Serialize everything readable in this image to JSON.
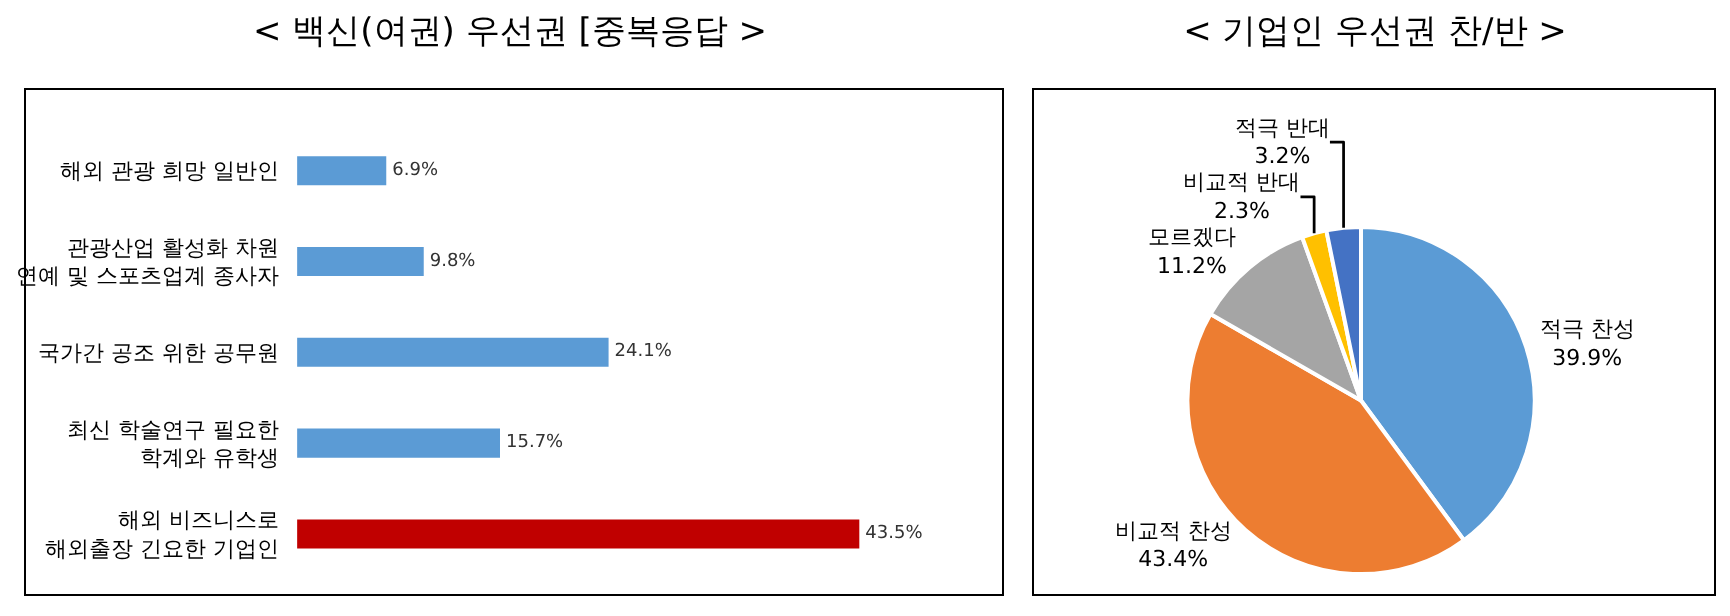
{
  "chart_data": [
    {
      "type": "bar",
      "orientation": "horizontal",
      "title": "< 백신(여권) 우선권 [중복응답 >",
      "categories": [
        "해외 관광 희망 일반인",
        "관광산업 활성화 차원\n연예 및 스포츠업계 종사자",
        "국가간 공조 위한 공무원",
        "최신 학술연구 필요한\n학계와 유학생",
        "해외 비즈니스로\n해외출장 긴요한 기업인"
      ],
      "values": [
        6.9,
        9.8,
        24.1,
        15.7,
        43.5
      ],
      "value_labels": [
        "6.9%",
        "9.8%",
        "24.1%",
        "15.7%",
        "43.5%"
      ],
      "colors": [
        "#5b9bd5",
        "#5b9bd5",
        "#5b9bd5",
        "#5b9bd5",
        "#c00000"
      ]
    },
    {
      "type": "pie",
      "title": "< 기업인 우선권 찬/반 >",
      "categories": [
        "적극 찬성",
        "비교적 찬성",
        "모르겠다",
        "비교적 반대",
        "적극 반대"
      ],
      "values": [
        39.9,
        43.4,
        11.2,
        2.3,
        3.2
      ],
      "value_labels": [
        "39.9%",
        "43.4%",
        "11.2%",
        "2.3%",
        "3.2%"
      ],
      "colors": [
        "#5b9bd5",
        "#ed7d31",
        "#a5a5a5",
        "#ffc000",
        "#4472c4"
      ]
    }
  ]
}
